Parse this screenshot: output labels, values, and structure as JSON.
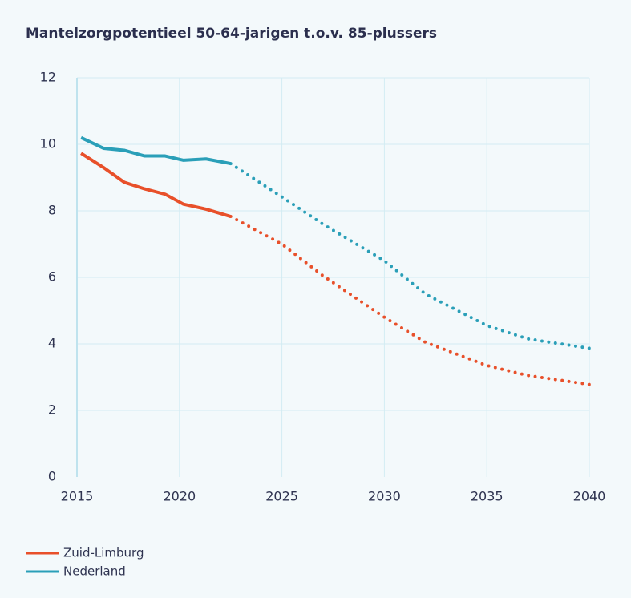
{
  "chart_data": {
    "type": "line",
    "title": "Mantelzorgpotentieel 50-64-jarigen t.o.v. 85-plussers",
    "x": [
      2015.2,
      2016.3,
      2017.3,
      2018.3,
      2019.3,
      2020.2,
      2021.3,
      2022.5,
      2025,
      2027,
      2030,
      2032,
      2035,
      2037,
      2040
    ],
    "series": [
      {
        "name": "Zuid-Limburg",
        "color": "#e8502a",
        "values": [
          9.73,
          9.3,
          8.86,
          8.66,
          8.5,
          8.2,
          8.05,
          7.83,
          7.0,
          6.05,
          4.8,
          4.05,
          3.35,
          3.05,
          2.78
        ]
      },
      {
        "name": "Nederland",
        "color": "#2a9fb8",
        "values": [
          10.2,
          9.88,
          9.82,
          9.65,
          9.65,
          9.52,
          9.56,
          9.42,
          8.42,
          7.6,
          6.5,
          5.5,
          4.55,
          4.15,
          3.87
        ]
      }
    ],
    "projection_x": 2022.5,
    "xlim": [
      2015,
      2040
    ],
    "xticks": [
      2015,
      2020,
      2025,
      2030,
      2035,
      2040
    ],
    "ylim": [
      0,
      12
    ],
    "yticks": [
      0,
      2,
      4,
      6,
      8,
      10,
      12
    ],
    "grid": true,
    "legend": "bottom-left"
  }
}
